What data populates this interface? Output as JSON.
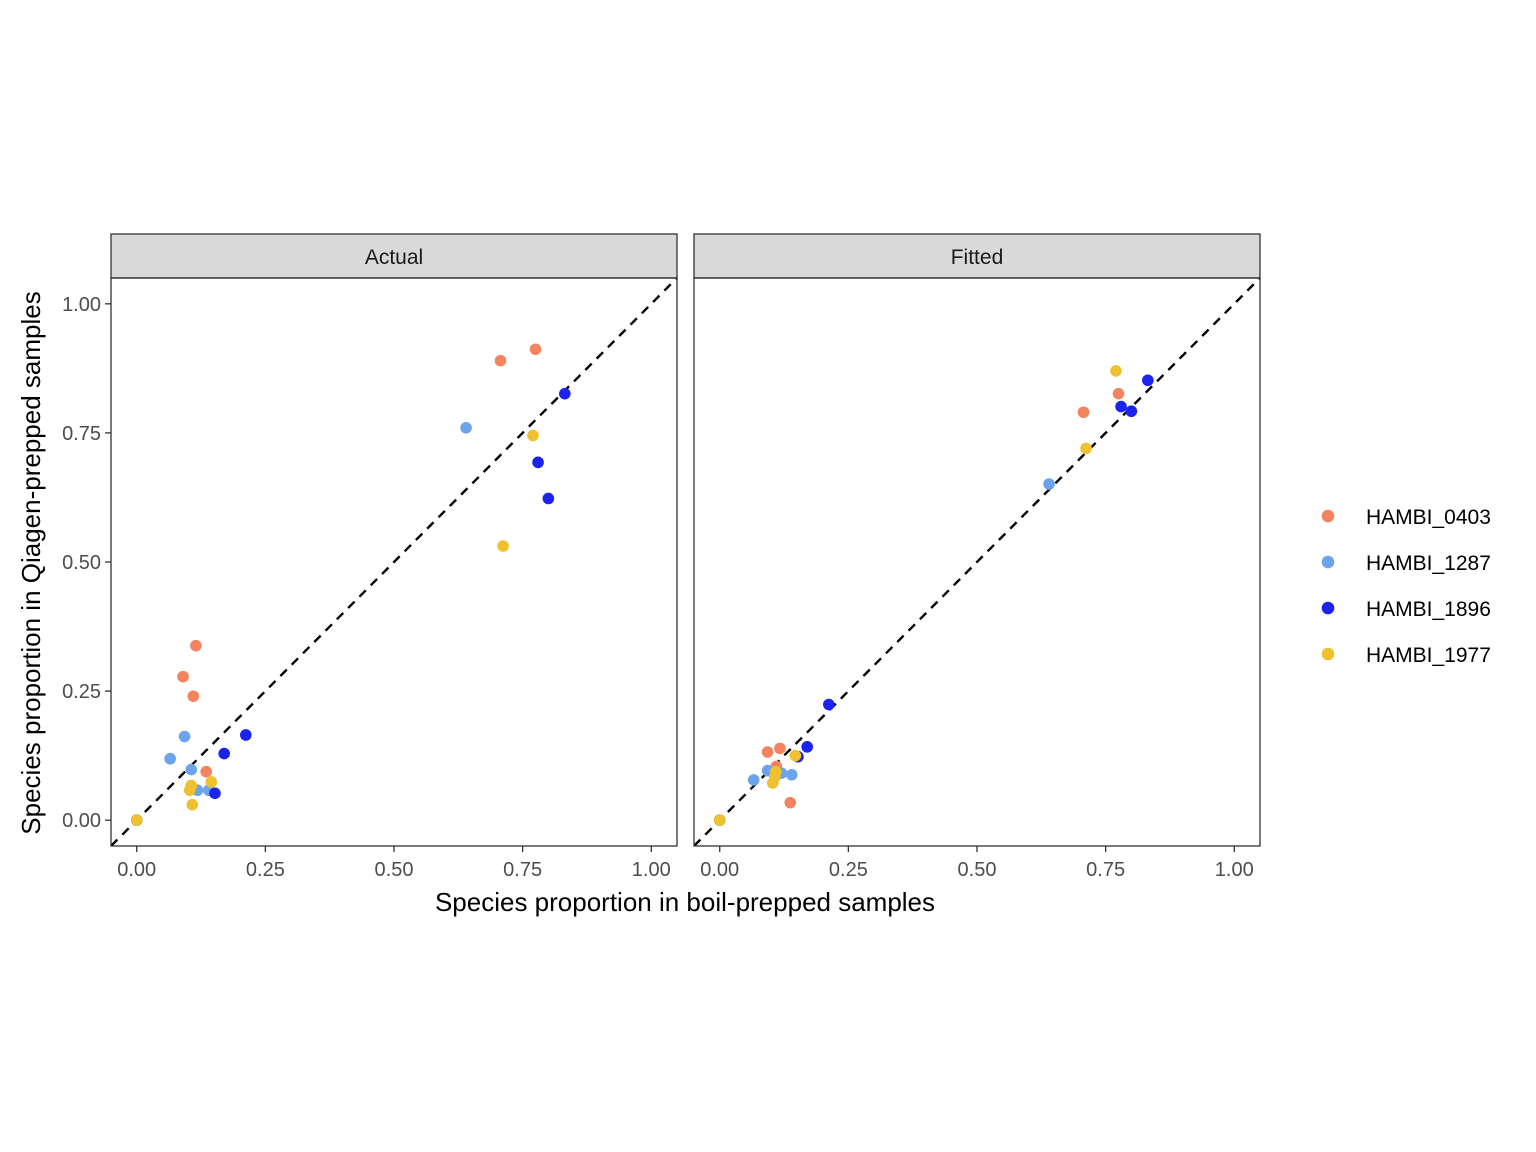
{
  "chart_data": {
    "type": "scatter",
    "xlabel": "Species proportion in boil-prepped samples",
    "ylabel": "Species proportion in Qiagen-prepped samples",
    "xlim": [
      -0.05,
      1.05
    ],
    "ylim": [
      -0.05,
      1.05
    ],
    "xticks": [
      "0.00",
      "0.25",
      "0.50",
      "0.75",
      "1.00"
    ],
    "yticks": [
      "0.00",
      "0.25",
      "0.50",
      "0.75",
      "1.00"
    ],
    "reference_line": "y = x (dashed)",
    "grid": false,
    "legend_position": "right",
    "legend": [
      {
        "name": "HAMBI_0403",
        "color": "#F4845F"
      },
      {
        "name": "HAMBI_1287",
        "color": "#6CA4EC"
      },
      {
        "name": "HAMBI_1896",
        "color": "#1C22F0"
      },
      {
        "name": "HAMBI_1977",
        "color": "#EFC12E"
      }
    ],
    "panels": [
      {
        "strip": "Actual",
        "series": [
          {
            "name": "HAMBI_0403",
            "points": [
              [
                0.0,
                0.0
              ],
              [
                0.09,
                0.278
              ],
              [
                0.115,
                0.338
              ],
              [
                0.11,
                0.24
              ],
              [
                0.135,
                0.094
              ],
              [
                0.707,
                0.89
              ],
              [
                0.775,
                0.912
              ]
            ]
          },
          {
            "name": "HAMBI_1287",
            "points": [
              [
                0.0,
                0.0
              ],
              [
                0.065,
                0.119
              ],
              [
                0.093,
                0.162
              ],
              [
                0.106,
                0.098
              ],
              [
                0.118,
                0.058
              ],
              [
                0.14,
                0.058
              ],
              [
                0.64,
                0.76
              ]
            ]
          },
          {
            "name": "HAMBI_1896",
            "points": [
              [
                0.0,
                0.0
              ],
              [
                0.152,
                0.052
              ],
              [
                0.17,
                0.129
              ],
              [
                0.212,
                0.165
              ],
              [
                0.78,
                0.693
              ],
              [
                0.8,
                0.623
              ],
              [
                0.832,
                0.826
              ]
            ]
          },
          {
            "name": "HAMBI_1977",
            "points": [
              [
                0.0,
                0.0
              ],
              [
                0.103,
                0.058
              ],
              [
                0.106,
                0.067
              ],
              [
                0.108,
                0.03
              ],
              [
                0.145,
                0.074
              ],
              [
                0.712,
                0.531
              ],
              [
                0.77,
                0.745
              ]
            ]
          }
        ]
      },
      {
        "strip": "Fitted",
        "series": [
          {
            "name": "HAMBI_0403",
            "points": [
              [
                0.0,
                0.0
              ],
              [
                0.093,
                0.132
              ],
              [
                0.117,
                0.139
              ],
              [
                0.11,
                0.104
              ],
              [
                0.137,
                0.034
              ],
              [
                0.707,
                0.79
              ],
              [
                0.775,
                0.826
              ]
            ]
          },
          {
            "name": "HAMBI_1287",
            "points": [
              [
                0.0,
                0.0
              ],
              [
                0.066,
                0.078
              ],
              [
                0.093,
                0.096
              ],
              [
                0.108,
                0.093
              ],
              [
                0.12,
                0.091
              ],
              [
                0.14,
                0.088
              ],
              [
                0.64,
                0.651
              ]
            ]
          },
          {
            "name": "HAMBI_1896",
            "points": [
              [
                0.0,
                0.0
              ],
              [
                0.152,
                0.123
              ],
              [
                0.17,
                0.142
              ],
              [
                0.212,
                0.224
              ],
              [
                0.78,
                0.801
              ],
              [
                0.8,
                0.792
              ],
              [
                0.832,
                0.852
              ]
            ]
          },
          {
            "name": "HAMBI_1977",
            "points": [
              [
                0.0,
                0.0
              ],
              [
                0.103,
                0.072
              ],
              [
                0.107,
                0.083
              ],
              [
                0.109,
                0.094
              ],
              [
                0.147,
                0.125
              ],
              [
                0.712,
                0.72
              ],
              [
                0.77,
                0.87
              ]
            ]
          }
        ]
      }
    ]
  }
}
